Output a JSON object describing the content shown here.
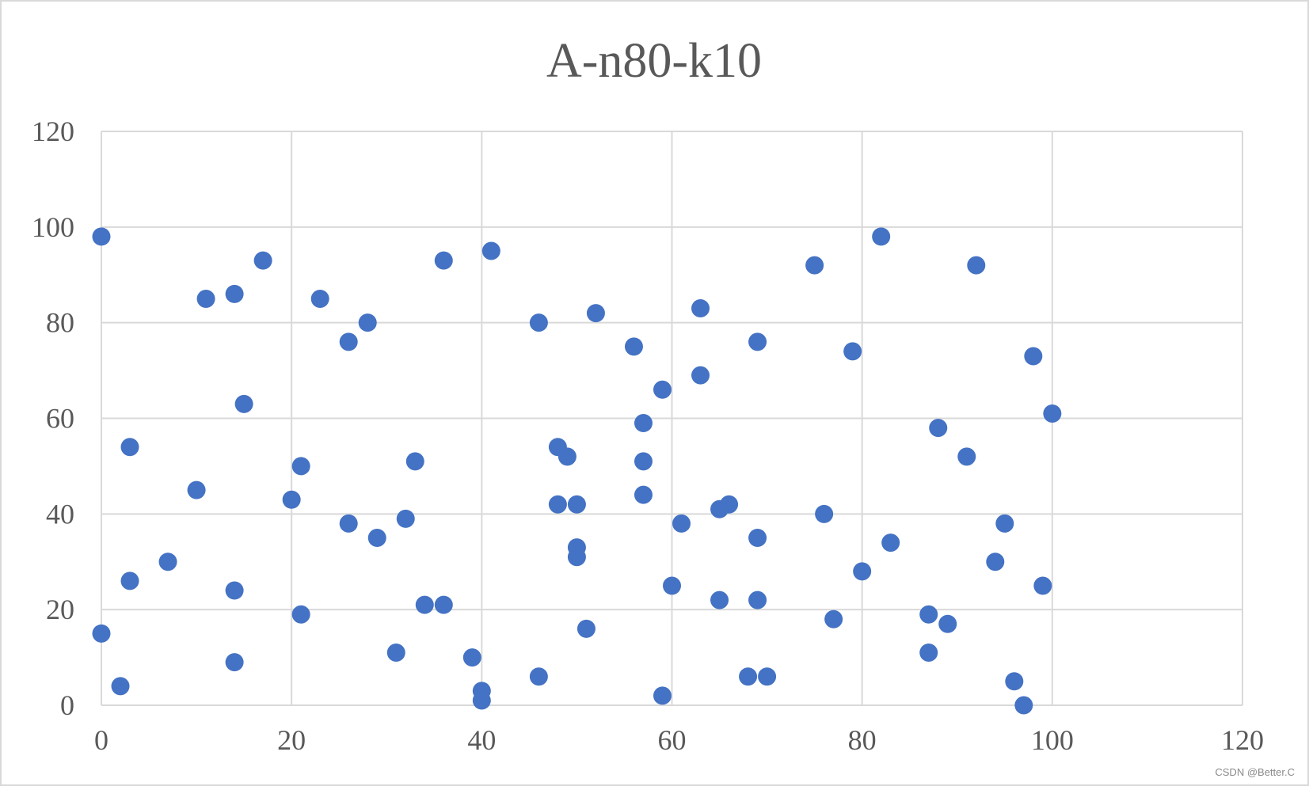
{
  "chart_data": {
    "type": "scatter",
    "title": "A-n80-k10",
    "xlabel": "",
    "ylabel": "",
    "xlim": [
      0,
      120
    ],
    "ylim": [
      0,
      120
    ],
    "x_ticks": [
      "0",
      "20",
      "40",
      "60",
      "80",
      "100",
      "120"
    ],
    "y_ticks": [
      "0",
      "20",
      "40",
      "60",
      "80",
      "100",
      "120"
    ],
    "grid": true,
    "legend": "none",
    "marker_color": "#4472c4",
    "points": [
      [
        0,
        98
      ],
      [
        0,
        15
      ],
      [
        2,
        4
      ],
      [
        3,
        54
      ],
      [
        3,
        26
      ],
      [
        7,
        30
      ],
      [
        10,
        45
      ],
      [
        11,
        85
      ],
      [
        14,
        86
      ],
      [
        14,
        24
      ],
      [
        14,
        9
      ],
      [
        15,
        63
      ],
      [
        17,
        93
      ],
      [
        20,
        43
      ],
      [
        21,
        50
      ],
      [
        21,
        19
      ],
      [
        23,
        85
      ],
      [
        26,
        76
      ],
      [
        26,
        38
      ],
      [
        28,
        80
      ],
      [
        29,
        35
      ],
      [
        31,
        11
      ],
      [
        32,
        39
      ],
      [
        33,
        51
      ],
      [
        34,
        21
      ],
      [
        36,
        93
      ],
      [
        36,
        21
      ],
      [
        39,
        10
      ],
      [
        40,
        3
      ],
      [
        40,
        1
      ],
      [
        41,
        95
      ],
      [
        46,
        80
      ],
      [
        46,
        6
      ],
      [
        48,
        54
      ],
      [
        48,
        42
      ],
      [
        49,
        52
      ],
      [
        50,
        42
      ],
      [
        50,
        33
      ],
      [
        50,
        31
      ],
      [
        51,
        16
      ],
      [
        52,
        82
      ],
      [
        56,
        75
      ],
      [
        57,
        59
      ],
      [
        57,
        51
      ],
      [
        57,
        44
      ],
      [
        59,
        66
      ],
      [
        59,
        2
      ],
      [
        60,
        25
      ],
      [
        61,
        38
      ],
      [
        63,
        83
      ],
      [
        63,
        69
      ],
      [
        65,
        41
      ],
      [
        65,
        22
      ],
      [
        66,
        42
      ],
      [
        68,
        6
      ],
      [
        69,
        76
      ],
      [
        69,
        35
      ],
      [
        69,
        22
      ],
      [
        70,
        6
      ],
      [
        75,
        92
      ],
      [
        76,
        40
      ],
      [
        77,
        18
      ],
      [
        79,
        74
      ],
      [
        80,
        28
      ],
      [
        82,
        98
      ],
      [
        83,
        34
      ],
      [
        87,
        19
      ],
      [
        87,
        11
      ],
      [
        88,
        58
      ],
      [
        89,
        17
      ],
      [
        91,
        52
      ],
      [
        92,
        92
      ],
      [
        94,
        30
      ],
      [
        95,
        38
      ],
      [
        96,
        5
      ],
      [
        97,
        0
      ],
      [
        98,
        73
      ],
      [
        99,
        25
      ],
      [
        100,
        61
      ]
    ]
  },
  "watermark": "CSDN @Better.C"
}
